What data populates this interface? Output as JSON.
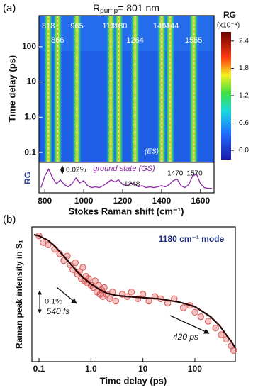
{
  "chart_data": [
    {
      "type": "heatmap",
      "panel_label": "(a)",
      "title": "R",
      "title_sub": "pump",
      "title_rest": "= 801 nm",
      "xlabel": "Stokes Raman shift (cm⁻¹)",
      "ylabel": "Time delay (ps)",
      "xlim": [
        770,
        1670
      ],
      "xticks": [
        800,
        1000,
        1200,
        1400,
        1600
      ],
      "ylim": [
        0.055,
        760
      ],
      "yscale": "log",
      "yticks": [
        0.1,
        {
          "value": 1,
          "label": "1.0"
        },
        10,
        100
      ],
      "peaks": [
        818,
        866,
        965,
        1139,
        1180,
        1264,
        1401,
        1444,
        1565
      ],
      "annotation": "(ES)",
      "colorbar": {
        "label": "RG",
        "unit": "(x10⁻⁴)",
        "clim": [
          -0.2,
          2.6
        ],
        "ticks": [
          {
            "value": 0,
            "label": "0.0"
          },
          0.6,
          1.2,
          1.8,
          2.4
        ]
      }
    },
    {
      "type": "line",
      "ylabel": "RG",
      "annotation": "ground state (GS)",
      "color": "#8e2aa8",
      "xlim": [
        770,
        1670
      ],
      "ylim": [
        0,
        0.07
      ],
      "x": [
        780,
        800,
        820,
        840,
        860,
        880,
        900,
        920,
        940,
        960,
        980,
        1000,
        1020,
        1040,
        1060,
        1080,
        1100,
        1120,
        1140,
        1160,
        1180,
        1200,
        1220,
        1240,
        1260,
        1280,
        1300,
        1320,
        1340,
        1360,
        1380,
        1400,
        1420,
        1440,
        1460,
        1480,
        1500,
        1520,
        1540,
        1560,
        1580,
        1600,
        1620,
        1640,
        1660
      ],
      "values": [
        0.01,
        0.04,
        0.058,
        0.035,
        0.02,
        0.03,
        0.018,
        0.012,
        0.02,
        0.035,
        0.022,
        0.028,
        0.015,
        0.01,
        0.012,
        0.01,
        0.015,
        0.022,
        0.03,
        0.025,
        0.03,
        0.018,
        0.015,
        0.022,
        0.02,
        0.012,
        0.015,
        0.01,
        0.012,
        0.01,
        0.012,
        0.015,
        0.012,
        0.018,
        0.028,
        0.032,
        0.015,
        0.01,
        0.018,
        0.04,
        0.045,
        0.02,
        0.01,
        0.008,
        0.008
      ],
      "scale_bar": {
        "value": 0.02,
        "label": "0.02%"
      },
      "peak_labels": [
        1248,
        1470,
        1570
      ]
    },
    {
      "type": "scatter",
      "panel_label": "(b)",
      "ylabel": "Raman peak intensity in S₁",
      "xlabel": "Time delay (ps)",
      "annotation": "1180 cm⁻¹ mode",
      "xscale": "log",
      "xlim": [
        0.073,
        600
      ],
      "xticks": [
        0.1,
        {
          "value": 1,
          "label": "1.0"
        },
        10,
        100
      ],
      "ylim": [
        0,
        0.6
      ],
      "color": "#d9534f",
      "x": [
        0.1,
        0.12,
        0.15,
        0.2,
        0.25,
        0.3,
        0.35,
        0.4,
        0.45,
        0.5,
        0.55,
        0.6,
        0.65,
        0.7,
        0.75,
        0.8,
        0.85,
        0.9,
        1.0,
        1.1,
        1.2,
        1.3,
        1.4,
        1.5,
        1.6,
        1.7,
        1.8,
        2.0,
        2.3,
        2.6,
        3,
        4,
        5,
        6,
        8,
        10,
        13,
        17,
        22,
        30,
        40,
        60,
        80,
        100,
        130,
        180,
        250,
        320,
        400,
        500,
        560
      ],
      "values": [
        0.56,
        0.53,
        0.52,
        0.5,
        0.48,
        0.45,
        0.47,
        0.43,
        0.41,
        0.44,
        0.39,
        0.4,
        0.37,
        0.42,
        0.36,
        0.38,
        0.35,
        0.37,
        0.34,
        0.33,
        0.36,
        0.31,
        0.34,
        0.3,
        0.32,
        0.29,
        0.33,
        0.3,
        0.28,
        0.31,
        0.27,
        0.3,
        0.29,
        0.31,
        0.28,
        0.3,
        0.27,
        0.29,
        0.28,
        0.26,
        0.28,
        0.24,
        0.25,
        0.22,
        0.2,
        0.18,
        0.15,
        0.12,
        0.1,
        0.07,
        0.05
      ],
      "fit": {
        "color": "#2a0505",
        "x": [
          0.08,
          0.1,
          0.15,
          0.2,
          0.3,
          0.5,
          0.7,
          1,
          1.5,
          2,
          3,
          5,
          10,
          20,
          50,
          100,
          200,
          300,
          400,
          500,
          600
        ],
        "values": [
          0.565,
          0.56,
          0.54,
          0.515,
          0.47,
          0.41,
          0.375,
          0.345,
          0.32,
          0.305,
          0.295,
          0.29,
          0.285,
          0.28,
          0.265,
          0.245,
          0.2,
          0.16,
          0.12,
          0.09,
          0.06
        ]
      },
      "arrows": [
        {
          "label": "540 fs"
        },
        {
          "label": "420 ps"
        }
      ],
      "scale_bar": {
        "value": 0.1,
        "label": "0.1%"
      }
    }
  ]
}
